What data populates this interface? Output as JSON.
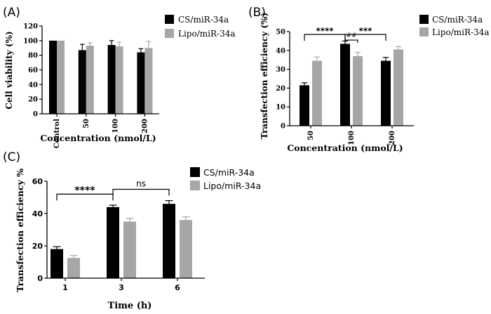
{
  "chart_data": [
    {
      "type": "bar",
      "panel_label": "(A)",
      "categories": [
        "Control",
        "50",
        "100",
        "200"
      ],
      "series": [
        {
          "name": "CS/miR-34a",
          "color": "#000000",
          "values": [
            100,
            87,
            94,
            84
          ],
          "errors": [
            0,
            8,
            6,
            5
          ]
        },
        {
          "name": "Lipo/miR-34a",
          "color": "#a6a6a6",
          "values": [
            100,
            93,
            92,
            90
          ],
          "errors": [
            0,
            4,
            6,
            9
          ]
        }
      ],
      "xlabel": "Concentration (nmol/L)",
      "ylabel": "Cell viability (%)",
      "ylim": [
        0,
        120
      ],
      "yticks": [
        "0",
        "20",
        "40",
        "60",
        "80",
        "100",
        "120"
      ],
      "significance": []
    },
    {
      "type": "bar",
      "panel_label": "(B)",
      "categories": [
        "50",
        "100",
        "200"
      ],
      "series": [
        {
          "name": "CS/miR-34a",
          "color": "#000000",
          "values": [
            21.5,
            43.5,
            34.5
          ],
          "errors": [
            1.3,
            1.5,
            1.8
          ]
        },
        {
          "name": "Lipo/miR-34a",
          "color": "#a6a6a6",
          "values": [
            34.5,
            37,
            40.5
          ],
          "errors": [
            2,
            2,
            1.5
          ]
        }
      ],
      "xlabel": "Concentration (nmol/L)",
      "ylabel": "Transfection efficiency (%)",
      "ylim": [
        0,
        50
      ],
      "yticks": [
        "0",
        "10",
        "20",
        "30",
        "40",
        "50"
      ],
      "significance": [
        {
          "label": "****",
          "from": [
            0,
            0
          ],
          "to": [
            1,
            0
          ],
          "y": 48.5
        },
        {
          "label": "***",
          "from": [
            1,
            0
          ],
          "to": [
            2,
            0
          ],
          "y": 48.5
        },
        {
          "label": "##",
          "from": [
            1,
            0
          ],
          "to": [
            1,
            1
          ],
          "y": 45.5
        }
      ]
    },
    {
      "type": "bar",
      "panel_label": "(C)",
      "categories": [
        "1",
        "3",
        "6"
      ],
      "series": [
        {
          "name": "CS/miR-34a",
          "color": "#000000",
          "values": [
            18,
            44,
            46
          ],
          "errors": [
            1.5,
            1.2,
            2
          ]
        },
        {
          "name": "Lipo/miR-34a",
          "color": "#a6a6a6",
          "values": [
            12.5,
            35,
            36
          ],
          "errors": [
            1.5,
            2,
            2
          ]
        }
      ],
      "xlabel": "Time (h)",
      "ylabel": "Transfection efficiency %",
      "ylim": [
        0,
        60
      ],
      "yticks": [
        "0",
        "20",
        "40",
        "60"
      ],
      "significance": [
        {
          "label": "****",
          "from": [
            0,
            0
          ],
          "to": [
            1,
            0
          ],
          "y": 52
        },
        {
          "label": "ns",
          "from": [
            1,
            0
          ],
          "to": [
            2,
            0
          ],
          "y": 55
        }
      ]
    }
  ]
}
